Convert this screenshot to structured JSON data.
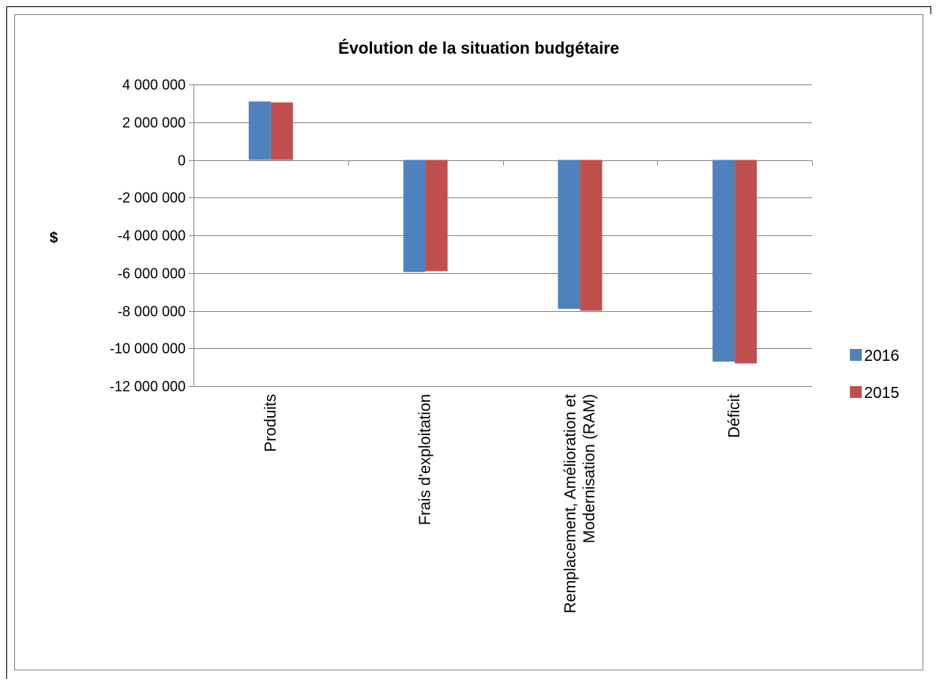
{
  "chart_data": {
    "type": "bar",
    "title": "Évolution de la situation budgétaire",
    "xlabel": "",
    "ylabel": "$",
    "ylim": [
      -12000000,
      4000000
    ],
    "ytick_step": 2000000,
    "ytick_labels": [
      "4 000 000",
      "2 000 000",
      "0",
      "-2 000 000",
      "-4 000 000",
      "-6 000 000",
      "-8 000 000",
      "-10 000 000",
      "-12 000 000"
    ],
    "categories": [
      "Produits",
      "Frais d'exploitation",
      "Remplacement, Amélioration et Modernisation (RAM)",
      "Déficit"
    ],
    "category_lines": [
      [
        "Produits"
      ],
      [
        "Frais d'exploitation"
      ],
      [
        "Remplacement, Amélioration et",
        "Modernisation (RAM)"
      ],
      [
        "Déficit"
      ]
    ],
    "series": [
      {
        "name": "2016",
        "color": "#4F81BD",
        "values": [
          3100000,
          -5950000,
          -7900000,
          -10700000
        ]
      },
      {
        "name": "2015",
        "color": "#C0504D",
        "values": [
          3050000,
          -5900000,
          -8000000,
          -10800000
        ]
      }
    ],
    "grid": true,
    "legend_position": "right"
  }
}
